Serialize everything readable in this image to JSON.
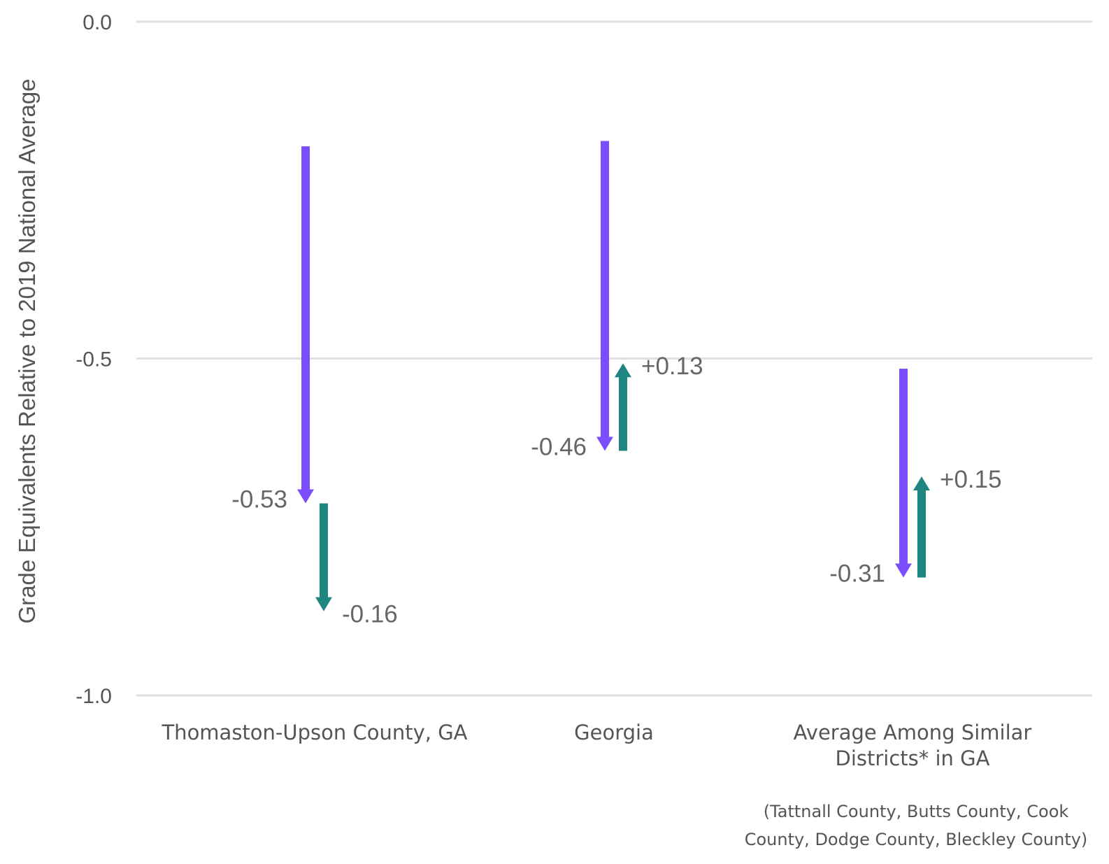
{
  "chart_data": {
    "type": "arrow",
    "ylabel": "Grade Equivalents Relative to 2019 National Average",
    "ylim": [
      -1.0,
      0.0
    ],
    "yticks": [
      {
        "value": 0.0,
        "label": "0.0"
      },
      {
        "value": -0.5,
        "label": "-0.5"
      },
      {
        "value": -1.0,
        "label": "-1.0"
      }
    ],
    "grid": true,
    "colors": {
      "decline": "#7b4dff",
      "change": "#1f8580"
    },
    "categories": [
      {
        "label_lines": [
          "Thomaston-Upson County, GA"
        ],
        "start": -0.185,
        "decline": -0.53,
        "decline_label": "-0.53",
        "change": -0.16,
        "change_label": "-0.16"
      },
      {
        "label_lines": [
          "Georgia"
        ],
        "start": -0.177,
        "decline": -0.46,
        "decline_label": "-0.46",
        "change": 0.13,
        "change_label": "+0.13"
      },
      {
        "label_lines": [
          "Average Among Similar",
          "Districts* in GA"
        ],
        "start": -0.515,
        "decline": -0.31,
        "decline_label": "-0.31",
        "change": 0.15,
        "change_label": "+0.15"
      }
    ],
    "footnote_lines": [
      "(Tattnall County, Butts County, Cook",
      "County, Dodge County, Bleckley County)"
    ]
  }
}
